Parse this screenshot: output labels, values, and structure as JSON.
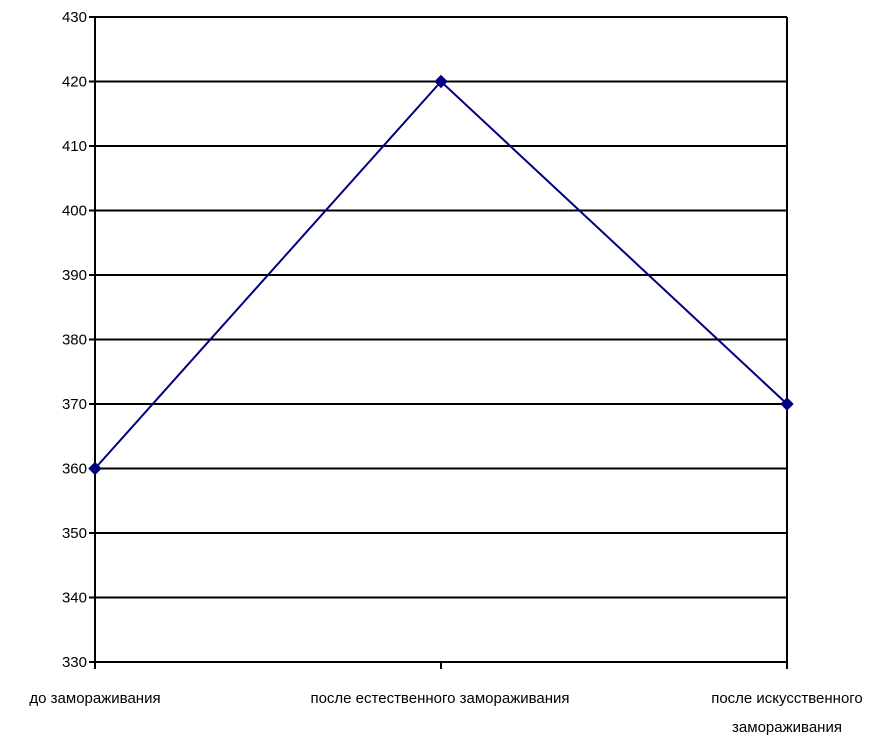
{
  "chart_data": {
    "type": "line",
    "title": "",
    "xlabel": "",
    "ylabel": "",
    "categories": [
      [
        "до замораживания"
      ],
      [
        "после естественного замораживания"
      ],
      [
        "после искусственного",
        "замораживания"
      ]
    ],
    "series": [
      {
        "values": [
          360,
          420,
          370
        ],
        "color": "#000080",
        "marker": "diamond"
      }
    ],
    "ylim": [
      330,
      430
    ],
    "yticks": [
      330,
      340,
      350,
      360,
      370,
      380,
      390,
      400,
      410,
      420,
      430
    ],
    "grid": true,
    "legend": "none"
  }
}
